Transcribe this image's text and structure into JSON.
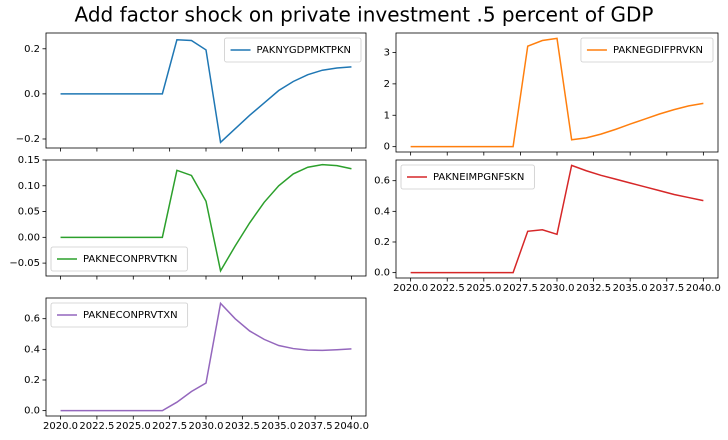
{
  "title": "Add factor shock on private investment .5 percent of GDP",
  "chart_data": [
    {
      "type": "line",
      "x": [
        2020,
        2021,
        2022,
        2023,
        2024,
        2025,
        2026,
        2027,
        2028,
        2029,
        2030,
        2031,
        2032,
        2033,
        2034,
        2035,
        2036,
        2037,
        2038,
        2039,
        2040
      ],
      "series": [
        {
          "name": "PAKNYGDPMKTPKN",
          "color": "#1f77b4",
          "values": [
            0,
            0,
            0,
            0,
            0,
            0,
            0,
            0,
            0.24,
            0.237,
            0.195,
            -0.215,
            -0.155,
            -0.095,
            -0.04,
            0.015,
            0.055,
            0.085,
            0.105,
            0.115,
            0.12
          ]
        }
      ],
      "xlim": [
        2019,
        2041
      ],
      "xticks": [
        2020,
        2022.5,
        2025,
        2027.5,
        2030,
        2032.5,
        2035,
        2037.5,
        2040
      ],
      "ylim": [
        -0.24,
        0.27
      ],
      "yticks": [
        {
          "value": -0.2,
          "label": "−0.2"
        },
        {
          "value": 0,
          "label": "0.0"
        },
        {
          "value": 0.2,
          "label": "0.2"
        }
      ],
      "legend": "upper right"
    },
    {
      "type": "line",
      "x": [
        2020,
        2021,
        2022,
        2023,
        2024,
        2025,
        2026,
        2027,
        2028,
        2029,
        2030,
        2031,
        2032,
        2033,
        2034,
        2035,
        2036,
        2037,
        2038,
        2039,
        2040
      ],
      "series": [
        {
          "name": "PAKNEGDIFPRVKN",
          "color": "#ff7f0e",
          "values": [
            0,
            0,
            0,
            0,
            0,
            0,
            0,
            0,
            3.2,
            3.38,
            3.45,
            0.22,
            0.28,
            0.4,
            0.55,
            0.72,
            0.88,
            1.04,
            1.18,
            1.3,
            1.38
          ]
        }
      ],
      "xlim": [
        2019,
        2041
      ],
      "xticks": [
        2020,
        2022.5,
        2025,
        2027.5,
        2030,
        2032.5,
        2035,
        2037.5,
        2040
      ],
      "ylim": [
        -0.17,
        3.62
      ],
      "yticks": [
        0,
        1,
        2,
        3
      ],
      "legend": "upper right"
    },
    {
      "type": "line",
      "x": [
        2020,
        2021,
        2022,
        2023,
        2024,
        2025,
        2026,
        2027,
        2028,
        2029,
        2030,
        2031,
        2032,
        2033,
        2034,
        2035,
        2036,
        2037,
        2038,
        2039,
        2040
      ],
      "series": [
        {
          "name": "PAKNECONPRVTKN",
          "color": "#2ca02c",
          "values": [
            0,
            0,
            0,
            0,
            0,
            0,
            0,
            0,
            0.13,
            0.12,
            0.07,
            -0.065,
            -0.017,
            0.028,
            0.068,
            0.1,
            0.123,
            0.136,
            0.141,
            0.139,
            0.133
          ]
        }
      ],
      "xlim": [
        2019,
        2041
      ],
      "xticks": [
        2020,
        2022.5,
        2025,
        2027.5,
        2030,
        2032.5,
        2035,
        2037.5,
        2040
      ],
      "ylim": [
        -0.075,
        0.15
      ],
      "yticks": [
        {
          "value": -0.05,
          "label": "−0.05"
        },
        {
          "value": 0,
          "label": "0.00"
        },
        {
          "value": 0.05,
          "label": "0.05"
        },
        {
          "value": 0.1,
          "label": "0.10"
        },
        {
          "value": 0.15,
          "label": "0.15"
        }
      ],
      "legend": "lower left"
    },
    {
      "type": "line",
      "x": [
        2020,
        2021,
        2022,
        2023,
        2024,
        2025,
        2026,
        2027,
        2028,
        2029,
        2030,
        2031,
        2032,
        2033,
        2034,
        2035,
        2036,
        2037,
        2038,
        2039,
        2040
      ],
      "series": [
        {
          "name": "PAKNEIMPGNFSKN",
          "color": "#d62728",
          "values": [
            0,
            0,
            0,
            0,
            0,
            0,
            0,
            0,
            0.27,
            0.28,
            0.25,
            0.7,
            0.665,
            0.635,
            0.61,
            0.585,
            0.56,
            0.535,
            0.51,
            0.49,
            0.47
          ]
        }
      ],
      "xlim": [
        2019,
        2041
      ],
      "xticks": [
        {
          "value": 2020,
          "label": "2020.0"
        },
        {
          "value": 2022.5,
          "label": "2022.5"
        },
        {
          "value": 2025,
          "label": "2025.0"
        },
        {
          "value": 2027.5,
          "label": "2027.5"
        },
        {
          "value": 2030,
          "label": "2030.0"
        },
        {
          "value": 2032.5,
          "label": "2032.5"
        },
        {
          "value": 2035,
          "label": "2035.0"
        },
        {
          "value": 2037.5,
          "label": "2037.5"
        },
        {
          "value": 2040,
          "label": "2040.0"
        }
      ],
      "ylim": [
        -0.035,
        0.735
      ],
      "yticks": [
        {
          "value": 0,
          "label": "0.0"
        },
        {
          "value": 0.2,
          "label": "0.2"
        },
        {
          "value": 0.4,
          "label": "0.4"
        },
        {
          "value": 0.6,
          "label": "0.6"
        }
      ],
      "legend": "upper left"
    },
    {
      "type": "line",
      "x": [
        2020,
        2021,
        2022,
        2023,
        2024,
        2025,
        2026,
        2027,
        2028,
        2029,
        2030,
        2031,
        2032,
        2033,
        2034,
        2035,
        2036,
        2037,
        2038,
        2039,
        2040
      ],
      "series": [
        {
          "name": "PAKNECONPRVTXN",
          "color": "#9467bd",
          "values": [
            0,
            0,
            0,
            0,
            0,
            0,
            0,
            0,
            0.055,
            0.125,
            0.18,
            0.7,
            0.6,
            0.52,
            0.465,
            0.425,
            0.405,
            0.395,
            0.393,
            0.397,
            0.403
          ]
        }
      ],
      "xlim": [
        2019,
        2041
      ],
      "xticks": [
        {
          "value": 2020,
          "label": "2020.0"
        },
        {
          "value": 2022.5,
          "label": "2022.5"
        },
        {
          "value": 2025,
          "label": "2025.0"
        },
        {
          "value": 2027.5,
          "label": "2027.5"
        },
        {
          "value": 2030,
          "label": "2030.0"
        },
        {
          "value": 2032.5,
          "label": "2032.5"
        },
        {
          "value": 2035,
          "label": "2035.0"
        },
        {
          "value": 2037.5,
          "label": "2037.5"
        },
        {
          "value": 2040,
          "label": "2040.0"
        }
      ],
      "ylim": [
        -0.035,
        0.735
      ],
      "yticks": [
        {
          "value": 0,
          "label": "0.0"
        },
        {
          "value": 0.2,
          "label": "0.2"
        },
        {
          "value": 0.4,
          "label": "0.4"
        },
        {
          "value": 0.6,
          "label": "0.6"
        }
      ],
      "legend": "upper left"
    }
  ]
}
